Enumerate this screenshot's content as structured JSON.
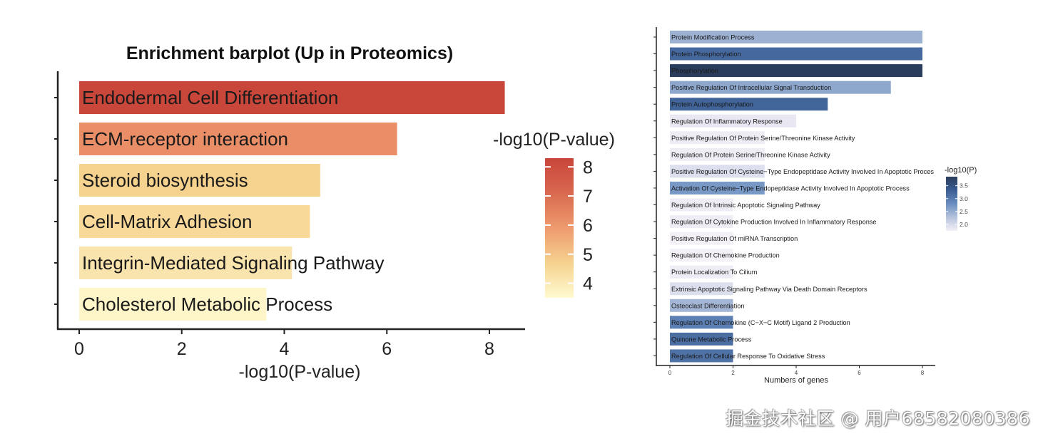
{
  "chart_data": [
    {
      "type": "bar",
      "orientation": "horizontal",
      "title": "Enrichment barplot (Up in Proteomics)",
      "xlabel": "-log10(P-value)",
      "ylabel": "",
      "categories": [
        "Endodermal Cell Differentiation",
        "ECM-receptor interaction",
        "Steroid biosynthesis",
        "Cell-Matrix Adhesion",
        "Integrin-Mediated Signaling Pathway",
        "Cholesterol Metabolic Process"
      ],
      "values": [
        8.3,
        6.2,
        4.7,
        4.5,
        4.15,
        3.65
      ],
      "xlim": [
        0,
        8.6
      ],
      "xticks": [
        "0",
        "2",
        "4",
        "6",
        "8"
      ],
      "color_by": "value",
      "legend": {
        "title": "-log10(P-value)",
        "position": "right",
        "ticks": [
          "4",
          "5",
          "6",
          "7",
          "8"
        ],
        "range": [
          3.5,
          8.3
        ],
        "colors": [
          "#fffad0",
          "#f6d28f",
          "#ee9a6e",
          "#d96950",
          "#c9463a"
        ]
      },
      "grid": false
    },
    {
      "type": "bar",
      "orientation": "horizontal",
      "xlabel": "Numbers of genes",
      "ylabel": "",
      "categories": [
        "Protein Modification Process",
        "Protein Phosphorylation",
        "Phosphorylation",
        "Positive Regulation Of Intracellular Signal Transduction",
        "Protein Autophosphorylation",
        "Regulation Of Inflammatory Response",
        "Positive Regulation Of Protein Serine/Threonine Kinase Activity",
        "Regulation Of Protein Serine/Threonine Kinase Activity",
        "Positive Regulation Of Cysteine−Type Endopeptidase Activity Involved In Apoptotic Proces",
        "Activation Of Cysteine−Type Endopeptidase Activity Involved In Apoptotic Process",
        "Regulation Of Intrinsic Apoptotic Signaling Pathway",
        "Regulation Of Cytokine Production Involved In Inflammatory Response",
        "Positive Regulation Of miRNA Transcription",
        "Regulation Of Chemokine Production",
        "Protein Localization To Cilium",
        "Extrinsic Apoptotic Signaling Pathway Via Death Domain Receptors",
        "Osteoclast Differentiation",
        "Regulation Of Chemokine (C−X−C Motif) Ligand 2 Production",
        "Quinone Metabolic Process",
        "Regulation Of Cellular Response To Oxidative Stress"
      ],
      "values": [
        8,
        8,
        8,
        7,
        5,
        4,
        3,
        3,
        3,
        3,
        2,
        2,
        2,
        2,
        2,
        2,
        2,
        2,
        2,
        2
      ],
      "color_values": [
        2.45,
        3.2,
        3.85,
        2.55,
        3.25,
        1.85,
        1.8,
        1.8,
        1.95,
        2.7,
        1.8,
        1.8,
        1.75,
        1.75,
        1.8,
        1.95,
        2.4,
        2.95,
        3.15,
        3.1
      ],
      "xlim": [
        0,
        8.4
      ],
      "xticks": [
        "0",
        "2",
        "4",
        "6",
        "8"
      ],
      "legend": {
        "title": "-log10(P)",
        "position": "right",
        "ticks": [
          "2.0",
          "2.5",
          "3.0",
          "3.5"
        ],
        "range": [
          1.75,
          3.85
        ],
        "colors": [
          "#f4f0f7",
          "#b6c3dc",
          "#6a8ec0",
          "#3a5d93",
          "#2b3d5c"
        ]
      },
      "grid": false
    }
  ],
  "watermark": "掘金技术社区 @ 用户68582080386"
}
